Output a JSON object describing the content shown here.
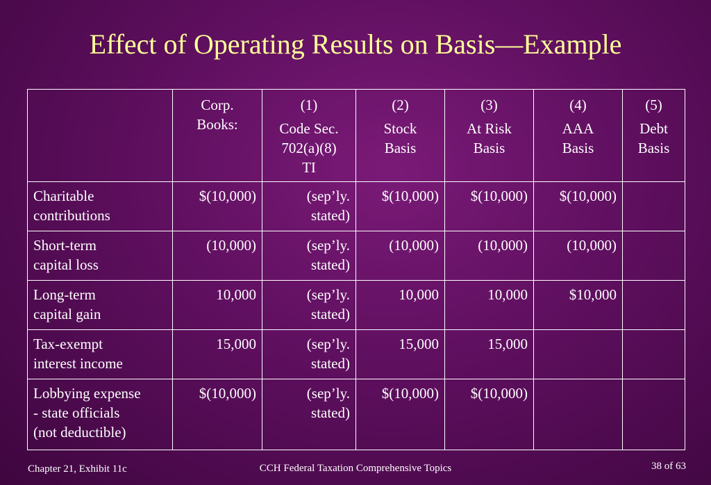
{
  "slide": {
    "title": "Effect of Operating Results on Basis—Example"
  },
  "table": {
    "headers": [
      {
        "lines": [
          ""
        ]
      },
      {
        "lines": [
          "Corp.",
          "Books:"
        ]
      },
      {
        "num": "(1)",
        "lines": [
          "Code Sec.",
          "702(a)(8)",
          "TI"
        ]
      },
      {
        "num": "(2)",
        "lines": [
          "Stock",
          "Basis"
        ]
      },
      {
        "num": "(3)",
        "lines": [
          "At Risk",
          "Basis"
        ]
      },
      {
        "num": "(4)",
        "lines": [
          "AAA",
          "Basis"
        ]
      },
      {
        "num": "(5)",
        "lines": [
          "Debt",
          "Basis"
        ]
      }
    ],
    "rows": [
      {
        "label": [
          "Charitable",
          "contributions"
        ],
        "corp_books": "$(10,000)",
        "code_sec": [
          "(sep’ly.",
          "stated)"
        ],
        "stock_basis": "$(10,000)",
        "at_risk_basis": "$(10,000)",
        "aaa_basis": "$(10,000)",
        "debt_basis": ""
      },
      {
        "label": [
          "Short-term",
          "capital loss"
        ],
        "corp_books": "(10,000)",
        "code_sec": [
          "(sep’ly.",
          "stated)"
        ],
        "stock_basis": "(10,000)",
        "at_risk_basis": "(10,000)",
        "aaa_basis": "(10,000)",
        "debt_basis": ""
      },
      {
        "label": [
          "Long-term",
          "capital gain"
        ],
        "corp_books": "10,000",
        "code_sec": [
          "(sep’ly.",
          "stated)"
        ],
        "stock_basis": "10,000",
        "at_risk_basis": "10,000",
        "aaa_basis": "$10,000",
        "debt_basis": ""
      },
      {
        "label": [
          "Tax-exempt",
          "interest income"
        ],
        "corp_books": "15,000",
        "code_sec": [
          "(sep’ly.",
          "stated)"
        ],
        "stock_basis": "15,000",
        "at_risk_basis": "15,000",
        "aaa_basis": "",
        "debt_basis": ""
      },
      {
        "label": [
          "Lobbying expense",
          "- state officials",
          "(not deductible)"
        ],
        "corp_books": "$(10,000)",
        "code_sec": [
          "(sep’ly.",
          "stated)"
        ],
        "stock_basis": "$(10,000)",
        "at_risk_basis": "$(10,000)",
        "aaa_basis": "",
        "debt_basis": ""
      }
    ]
  },
  "footer": {
    "left": "Chapter 21, Exhibit 11c",
    "center": "CCH Federal Taxation Comprehensive Topics",
    "right": "38 of 63"
  },
  "colors": {
    "background": "#5e0f5e",
    "title": "#ffff99",
    "text": "#ffffff",
    "border": "#ffffff"
  }
}
